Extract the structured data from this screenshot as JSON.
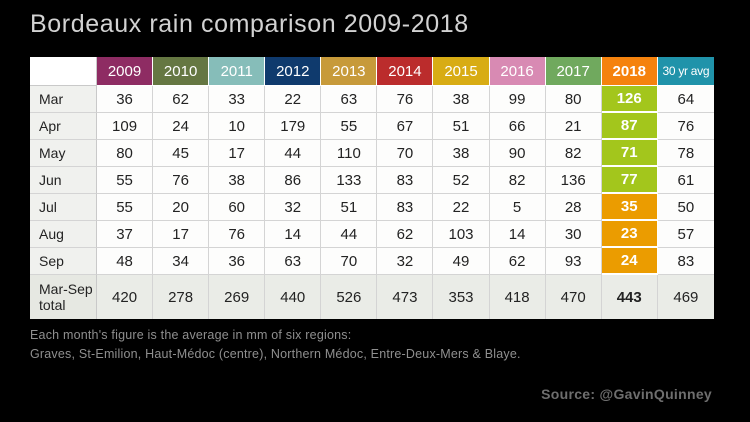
{
  "title": "Bordeaux rain comparison 2009-2018",
  "colors": {
    "background": "#000000",
    "title_text": "#d2d2d2",
    "footnote_text": "#8f8f8f",
    "source_text": "#6e6e6e",
    "cell_text": "#232323",
    "highlight_green": "#a3c61c",
    "highlight_orange": "#eb9c00",
    "total_row_bg": "#eaece7",
    "row_label_bg": "#f0f1ee",
    "cell_bg": "#fdfdfc"
  },
  "table": {
    "corner_label": "",
    "columns": [
      {
        "label": "2009",
        "color": "#8e2c63"
      },
      {
        "label": "2010",
        "color": "#657742"
      },
      {
        "label": "2011",
        "color": "#86bdb9"
      },
      {
        "label": "2012",
        "color": "#0f3a6d"
      },
      {
        "label": "2013",
        "color": "#c79a3a"
      },
      {
        "label": "2014",
        "color": "#bb2c2c"
      },
      {
        "label": "2015",
        "color": "#d8ac14"
      },
      {
        "label": "2016",
        "color": "#d88ab3"
      },
      {
        "label": "2017",
        "color": "#70a95e"
      },
      {
        "label": "2018",
        "color": "#f5820d",
        "bold": true
      },
      {
        "label": "30 yr avg",
        "color": "#2093aa",
        "small": true
      }
    ],
    "highlight_column": 9,
    "rows": [
      {
        "label": "Mar",
        "values": [
          36,
          62,
          33,
          22,
          63,
          76,
          38,
          99,
          80,
          126,
          64
        ],
        "highlight": "green"
      },
      {
        "label": "Apr",
        "values": [
          109,
          24,
          10,
          179,
          55,
          67,
          51,
          66,
          21,
          87,
          76
        ],
        "highlight": "green"
      },
      {
        "label": "May",
        "values": [
          80,
          45,
          17,
          44,
          110,
          70,
          38,
          90,
          82,
          71,
          78
        ],
        "highlight": "green"
      },
      {
        "label": "Jun",
        "values": [
          55,
          76,
          38,
          86,
          133,
          83,
          52,
          82,
          136,
          77,
          61
        ],
        "highlight": "green"
      },
      {
        "label": "Jul",
        "values": [
          55,
          20,
          60,
          32,
          51,
          83,
          22,
          5,
          28,
          35,
          50
        ],
        "highlight": "orange"
      },
      {
        "label": "Aug",
        "values": [
          37,
          17,
          76,
          14,
          44,
          62,
          103,
          14,
          30,
          23,
          57
        ],
        "highlight": "orange"
      },
      {
        "label": "Sep",
        "values": [
          48,
          34,
          36,
          63,
          70,
          32,
          49,
          62,
          93,
          24,
          83
        ],
        "highlight": "orange"
      },
      {
        "label": "Mar-Sep total",
        "values": [
          420,
          278,
          269,
          440,
          526,
          473,
          353,
          418,
          470,
          443,
          469
        ],
        "total": true
      }
    ]
  },
  "footnote": {
    "line1": "Each month's figure is the average in mm of six regions:",
    "line2": "Graves, St-Emilion, Haut-Médoc (centre), Northern Médoc, Entre-Deux-Mers & Blaye."
  },
  "source": "Source: @GavinQuinney",
  "chart_data": {
    "type": "table",
    "title": "Bordeaux rain comparison 2009-2018",
    "unit": "mm (monthly average rainfall of six regions)",
    "columns": [
      "2009",
      "2010",
      "2011",
      "2012",
      "2013",
      "2014",
      "2015",
      "2016",
      "2017",
      "2018",
      "30 yr avg"
    ],
    "row_labels": [
      "Mar",
      "Apr",
      "May",
      "Jun",
      "Jul",
      "Aug",
      "Sep",
      "Mar-Sep total"
    ],
    "values": [
      [
        36,
        62,
        33,
        22,
        63,
        76,
        38,
        99,
        80,
        126,
        64
      ],
      [
        109,
        24,
        10,
        179,
        55,
        67,
        51,
        66,
        21,
        87,
        76
      ],
      [
        80,
        45,
        17,
        44,
        110,
        70,
        38,
        90,
        82,
        71,
        78
      ],
      [
        55,
        76,
        38,
        86,
        133,
        83,
        52,
        82,
        136,
        77,
        61
      ],
      [
        55,
        20,
        60,
        32,
        51,
        83,
        22,
        5,
        28,
        35,
        50
      ],
      [
        37,
        17,
        76,
        14,
        44,
        62,
        103,
        14,
        30,
        23,
        57
      ],
      [
        48,
        34,
        36,
        63,
        70,
        32,
        49,
        62,
        93,
        24,
        83
      ],
      [
        420,
        278,
        269,
        440,
        526,
        473,
        353,
        418,
        470,
        443,
        469
      ]
    ]
  }
}
